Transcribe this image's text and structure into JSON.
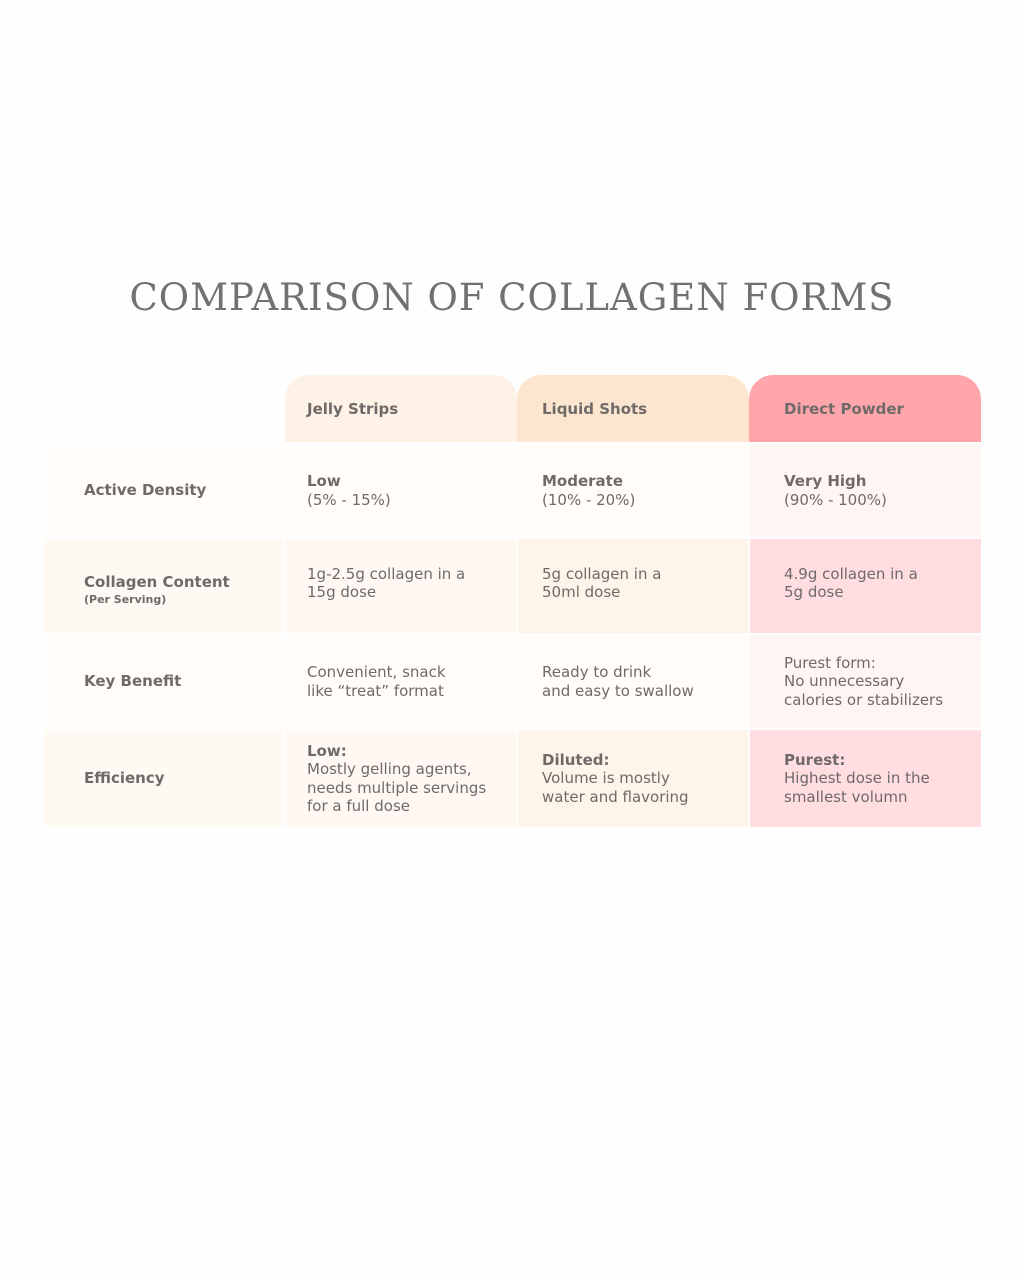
{
  "title": "COMPARISON OF COLLAGEN FORMS",
  "colors": {
    "jelly_header": "#fef1e5",
    "liquid_header": "#fde6d0",
    "powder_header": "#fea6ab"
  },
  "columns": [
    "Jelly Strips",
    "Liquid Shots",
    "Direct Powder"
  ],
  "rows": [
    {
      "label": "Active Density",
      "sublabel": "",
      "cells": [
        {
          "strong": "Low",
          "lines": [
            "(5% - 15%)"
          ]
        },
        {
          "strong": "Moderate",
          "lines": [
            "(10% - 20%)"
          ]
        },
        {
          "strong": "Very High",
          "lines": [
            "(90% - 100%)"
          ]
        }
      ]
    },
    {
      "label": "Collagen Content",
      "sublabel": "(Per Serving)",
      "cells": [
        {
          "strong": "",
          "lines": [
            "1g-2.5g collagen in a",
            "15g dose"
          ]
        },
        {
          "strong": "",
          "lines": [
            "5g collagen in a",
            "50ml dose"
          ]
        },
        {
          "strong": "",
          "lines": [
            "4.9g collagen in a",
            "5g dose"
          ]
        }
      ]
    },
    {
      "label": "Key Benefit",
      "sublabel": "",
      "cells": [
        {
          "strong": "",
          "lines": [
            "Convenient, snack",
            "like “treat” format"
          ]
        },
        {
          "strong": "",
          "lines": [
            "Ready to drink",
            "and easy to swallow"
          ]
        },
        {
          "strong": "",
          "lines": [
            "Purest form:",
            "No unnecessary",
            "calories or stabilizers"
          ]
        }
      ]
    },
    {
      "label": "Efficiency",
      "sublabel": "",
      "cells": [
        {
          "strong": "Low:",
          "lines": [
            "Mostly gelling agents,",
            "needs multiple servings",
            "for a full dose"
          ]
        },
        {
          "strong": "Diluted:",
          "lines": [
            "Volume is mostly",
            "water and flavoring"
          ]
        },
        {
          "strong": "Purest:",
          "lines": [
            "Highest dose in the",
            "smallest volumn"
          ]
        }
      ]
    }
  ]
}
